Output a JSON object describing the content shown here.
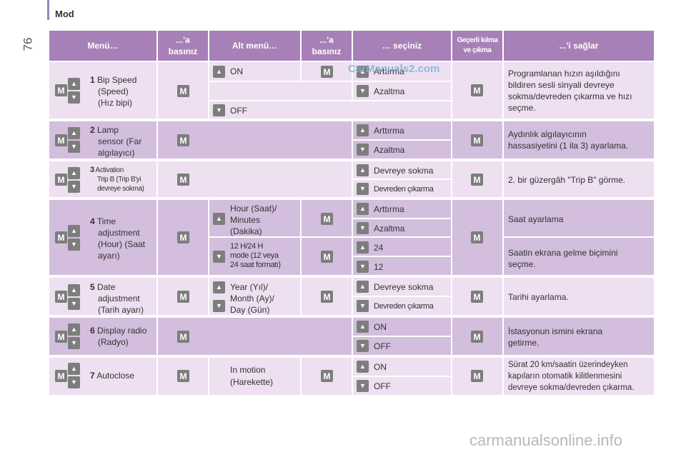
{
  "page": {
    "section": "Mod",
    "page_number": "76",
    "watermark_top": "CarManuals2.com",
    "watermark_bottom": "carmanualsonline.info"
  },
  "headers": {
    "menu": "Menü…",
    "press1_line1": "...'a",
    "press1_line2": "basınız",
    "submenu": "Alt menü…",
    "press2_line1": "...'a",
    "press2_line2": "basınız",
    "select": "… seçiniz",
    "confirm_line1": "Geçerli kılma",
    "confirm_line2": "ve çıkma",
    "allows": "...'i sağlar"
  },
  "icons": {
    "m_label": "M",
    "up": "▲",
    "down": "▼"
  },
  "rows": {
    "r1": {
      "num": "1",
      "name_line1": "Bip Speed",
      "name_line2": "(Speed)",
      "name_line3": "(Hız bipi)",
      "sub1": "ON",
      "opt_up": "Arttırma",
      "opt_down": "Azaltma",
      "sub2": "OFF",
      "desc_line1": "Programlanan hızın aşıldığını",
      "desc_line2": "bildiren sesli sinyali devreye",
      "desc_line3": "sokma/devreden çıkarma ve hızı",
      "desc_line4": "seçme."
    },
    "r2": {
      "num": "2",
      "name_line1": "Lamp",
      "name_line2": "sensor (Far",
      "name_line3": "algılayıcı)",
      "opt_up": "Arttırma",
      "opt_down": "Azaltma",
      "desc_line1": "Aydınlık algılayıcının",
      "desc_line2": "hassasiyetini (1 ila 3) ayarlama."
    },
    "r3": {
      "num": "3",
      "name_line1": "Activation",
      "name_line2": "Trip B (Trip B'yi",
      "name_line3": "devreye sokma)",
      "opt_up": "Devreye sokma",
      "opt_down": "Devreden çıkarma",
      "desc_line1": "2. bir güzergâh \"Trip B\" görme."
    },
    "r4": {
      "num": "4",
      "name_line1": "Time",
      "name_line2": "adjustment",
      "name_line3": "(Hour) (Saat",
      "name_line4": "ayarı)",
      "sub1_line1": "Hour (Saat)/",
      "sub1_line2": "Minutes",
      "sub1_line3": "(Dakika)",
      "opt1_up": "Arttırma",
      "opt1_down": "Azaltma",
      "sub2_line1": "12 H/24 H",
      "sub2_line2": "mode (12 veya",
      "sub2_line3": "24 saat formatı)",
      "opt2_up": "24",
      "opt2_down": "12",
      "desc1": "Saat ayarlama",
      "desc2_line1": "Saatin ekrana gelme biçimini",
      "desc2_line2": "seçme."
    },
    "r5": {
      "num": "5",
      "name_line1": "Date",
      "name_line2": "adjustment",
      "name_line3": "(Tarih ayarı)",
      "sub_line1": "Year (Yıl)/",
      "sub_line2": "Month (Ay)/",
      "sub_line3": "Day (Gün)",
      "opt_up": "Devreye sokma",
      "opt_down": "Devreden çıkarma",
      "desc": "Tarihi ayarlama."
    },
    "r6": {
      "num": "6",
      "name_line1": "Display radio",
      "name_line2": "(Radyo)",
      "opt_up": "ON",
      "opt_down": "OFF",
      "desc_line1": "İstasyonun ismini ekrana",
      "desc_line2": "getirme."
    },
    "r7": {
      "num": "7",
      "name_line1": "Autoclose",
      "sub_line1": "In motion",
      "sub_line2": "(Harekette)",
      "opt_up": "ON",
      "opt_down": "OFF",
      "desc_line1": "Sürat 20 km/saatin üzerindeyken",
      "desc_line2": "kapıların otomatik kilitlenmesini",
      "desc_line3": "devreye sokma/devreden çıkarma."
    }
  }
}
